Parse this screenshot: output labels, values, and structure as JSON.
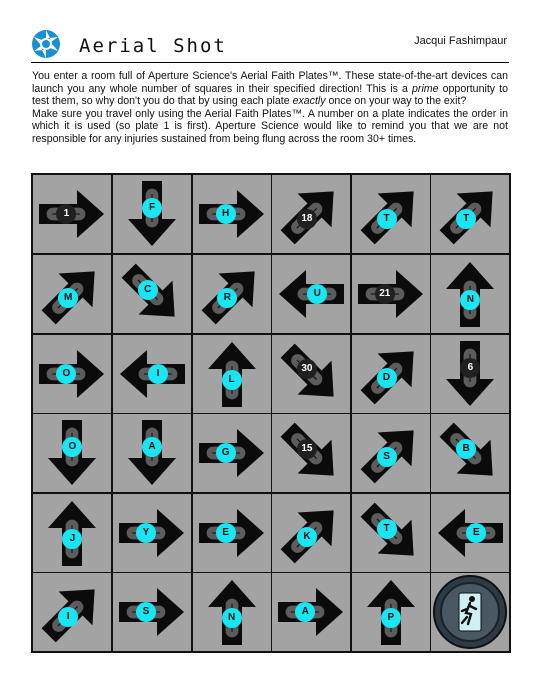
{
  "header": {
    "title": "Aerial Shot",
    "author": "Jacqui Fashimpaur"
  },
  "intro": {
    "p1_a": "You enter a room full of Aperture Science's Aerial Faith Plates™. These state-of-the-art devices can launch you any whole number of squares in their specified direction! This is a ",
    "p1_em1": "prime",
    "p1_b": " opportunity to test them, so why don't you do that by using each plate ",
    "p1_em2": "exactly",
    "p1_c": " once on your way to the exit?",
    "p2": "Make sure you travel only using the Aerial Faith Plates™. A number on a plate indicates the order in which it is used (so plate 1 is first). Aperture Science would like to remind you that we are not responsible for any injuries sustained from being flung across the room 30+ times."
  },
  "colors": {
    "cell": "#a3a3a3",
    "grid": "#111111",
    "label": "#18e6f2",
    "exit": "#4a5863"
  },
  "board": {
    "rows": [
      [
        {
          "dir": "E",
          "label": "1",
          "kind": "number"
        },
        {
          "dir": "S",
          "label": "F",
          "kind": "letter"
        },
        {
          "dir": "E",
          "label": "H",
          "kind": "letter"
        },
        {
          "dir": "NE",
          "label": "18",
          "kind": "number"
        },
        {
          "dir": "NE",
          "label": "T",
          "kind": "letter"
        },
        {
          "dir": "NE",
          "label": "T",
          "kind": "letter"
        }
      ],
      [
        {
          "dir": "NE",
          "label": "M",
          "kind": "letter"
        },
        {
          "dir": "SE",
          "label": "C",
          "kind": "letter"
        },
        {
          "dir": "NE",
          "label": "R",
          "kind": "letter"
        },
        {
          "dir": "W",
          "label": "U",
          "kind": "letter"
        },
        {
          "dir": "E",
          "label": "21",
          "kind": "number"
        },
        {
          "dir": "N",
          "label": "N",
          "kind": "letter"
        }
      ],
      [
        {
          "dir": "E",
          "label": "O",
          "kind": "letter"
        },
        {
          "dir": "W",
          "label": "I",
          "kind": "letter"
        },
        {
          "dir": "N",
          "label": "L",
          "kind": "letter"
        },
        {
          "dir": "SE",
          "label": "30",
          "kind": "number"
        },
        {
          "dir": "NE",
          "label": "D",
          "kind": "letter"
        },
        {
          "dir": "S",
          "label": "6",
          "kind": "number"
        }
      ],
      [
        {
          "dir": "S",
          "label": "O",
          "kind": "letter"
        },
        {
          "dir": "S",
          "label": "A",
          "kind": "letter"
        },
        {
          "dir": "E",
          "label": "G",
          "kind": "letter"
        },
        {
          "dir": "SE",
          "label": "15",
          "kind": "number"
        },
        {
          "dir": "NE",
          "label": "S",
          "kind": "letter"
        },
        {
          "dir": "SE",
          "label": "B",
          "kind": "letter"
        }
      ],
      [
        {
          "dir": "N",
          "label": "J",
          "kind": "letter"
        },
        {
          "dir": "E",
          "label": "Y",
          "kind": "letter"
        },
        {
          "dir": "E",
          "label": "E",
          "kind": "letter"
        },
        {
          "dir": "NE",
          "label": "K",
          "kind": "letter"
        },
        {
          "dir": "SE",
          "label": "T",
          "kind": "letter"
        },
        {
          "dir": "W",
          "label": "E",
          "kind": "letter"
        }
      ],
      [
        {
          "dir": "NE",
          "label": "I",
          "kind": "letter"
        },
        {
          "dir": "E",
          "label": "S",
          "kind": "letter"
        },
        {
          "dir": "N",
          "label": "N",
          "kind": "letter"
        },
        {
          "dir": "E",
          "label": "A",
          "kind": "letter"
        },
        {
          "dir": "N",
          "label": "P",
          "kind": "letter"
        },
        {
          "dir": "EXIT",
          "label": "",
          "kind": "exit"
        }
      ]
    ]
  }
}
